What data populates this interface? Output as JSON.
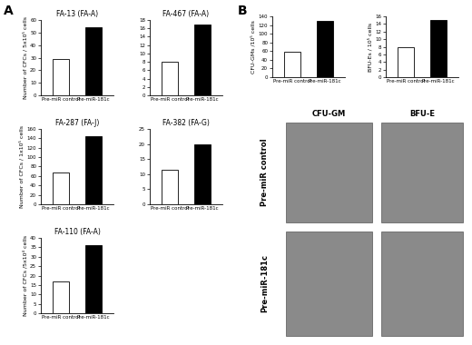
{
  "panel_labels": [
    "A",
    "B"
  ],
  "chart_data": [
    {
      "type": "bar",
      "panel": "A",
      "title": "FA-13 (FA-A)",
      "ylabel": "Number of CFCs / 5x10⁵ cells",
      "categories": [
        "Pre-miR control",
        "Pre-miR-181c"
      ],
      "values": [
        29,
        54
      ],
      "colors": [
        "#ffffff",
        "#000000"
      ],
      "ylim": [
        0,
        60
      ],
      "yticks": [
        0,
        10,
        20,
        30,
        40,
        50,
        60
      ]
    },
    {
      "type": "bar",
      "panel": "A",
      "title": "FA-467 (FA-A)",
      "categories": [
        "Pre-miR control",
        "Pre-miR-181c"
      ],
      "values": [
        8,
        17
      ],
      "colors": [
        "#ffffff",
        "#000000"
      ],
      "ylim": [
        0,
        18
      ],
      "yticks": [
        0,
        2,
        4,
        6,
        8,
        10,
        12,
        14,
        16,
        18
      ]
    },
    {
      "type": "bar",
      "panel": "A",
      "title": "FA-287 (FA-J)",
      "ylabel": "Number of CFCs / 1x10⁵ cells",
      "categories": [
        "Pre-miR control",
        "Pre-miR-181c"
      ],
      "values": [
        67,
        145
      ],
      "colors": [
        "#ffffff",
        "#000000"
      ],
      "ylim": [
        0,
        160
      ],
      "yticks": [
        0,
        20,
        40,
        60,
        80,
        100,
        120,
        140,
        160
      ]
    },
    {
      "type": "bar",
      "panel": "A",
      "title": "FA-382 (FA-G)",
      "categories": [
        "Pre-miR control",
        "Pre-miR-181c"
      ],
      "values": [
        11.5,
        20
      ],
      "colors": [
        "#ffffff",
        "#000000"
      ],
      "ylim": [
        0,
        25
      ],
      "yticks": [
        0,
        5,
        10,
        15,
        20,
        25
      ]
    },
    {
      "type": "bar",
      "panel": "A",
      "title": "FA-110 (FA-A)",
      "ylabel": "Number of CFCs /5x10⁴ cells",
      "categories": [
        "Pre-miR control",
        "Pre-miR-181c"
      ],
      "values": [
        17,
        36
      ],
      "colors": [
        "#ffffff",
        "#000000"
      ],
      "ylim": [
        0,
        40
      ],
      "yticks": [
        0,
        5,
        10,
        15,
        20,
        25,
        30,
        35,
        40
      ]
    },
    {
      "type": "bar",
      "panel": "B",
      "ylabel": "CFU-GMs /10⁵ cells",
      "categories": [
        "Pre-miR control",
        "Pre-miR-181c"
      ],
      "values": [
        58,
        130
      ],
      "colors": [
        "#ffffff",
        "#000000"
      ],
      "ylim": [
        0,
        140
      ],
      "yticks": [
        0,
        20,
        40,
        60,
        80,
        100,
        120,
        140
      ]
    },
    {
      "type": "bar",
      "panel": "B",
      "ylabel": "BFU-Es / 10⁵ cells",
      "categories": [
        "Pre-miR control",
        "Pre-miR-181c"
      ],
      "values": [
        8,
        15
      ],
      "colors": [
        "#ffffff",
        "#000000"
      ],
      "ylim": [
        0,
        16
      ],
      "yticks": [
        0,
        2,
        4,
        6,
        8,
        10,
        12,
        14,
        16
      ]
    }
  ],
  "images": {
    "column_labels": [
      "CFU-GM",
      "BFU-E"
    ],
    "row_labels": [
      "Pre-miR control",
      "Pre-miR-181c"
    ]
  }
}
